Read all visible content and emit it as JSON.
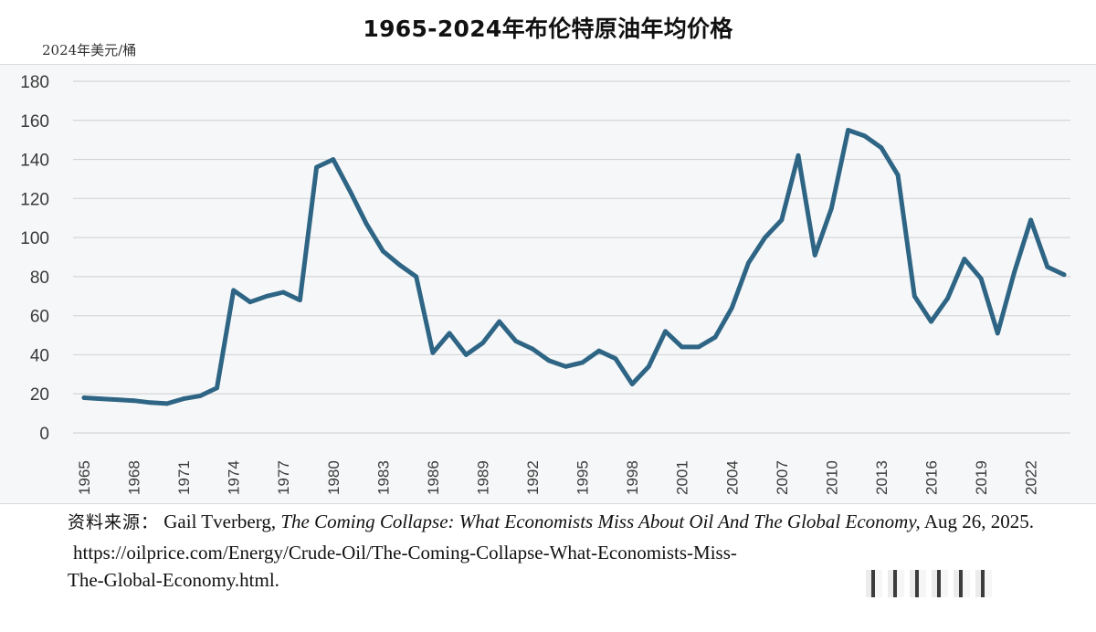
{
  "chart_data": {
    "type": "line",
    "title": "1965-2024年布伦特原油年均价格",
    "ylabel": "2024年美元/桶",
    "xlabel": "",
    "ylim": [
      0,
      180
    ],
    "grid": true,
    "legend": "none",
    "line_color": "#2e6585",
    "y_ticks": [
      0,
      20,
      40,
      60,
      80,
      100,
      120,
      140,
      160,
      180
    ],
    "x_ticks": [
      "1965",
      "1968",
      "1971",
      "1974",
      "1977",
      "1980",
      "1983",
      "1986",
      "1989",
      "1992",
      "1995",
      "1998",
      "2001",
      "2004",
      "2007",
      "2010",
      "2013",
      "2016",
      "2019",
      "2022"
    ],
    "series": [
      {
        "name": "布伦特原油年均价格",
        "x": [
          1965,
          1966,
          1967,
          1968,
          1969,
          1970,
          1971,
          1972,
          1973,
          1974,
          1975,
          1976,
          1977,
          1978,
          1979,
          1980,
          1981,
          1982,
          1983,
          1984,
          1985,
          1986,
          1987,
          1988,
          1989,
          1990,
          1991,
          1992,
          1993,
          1994,
          1995,
          1996,
          1997,
          1998,
          1999,
          2000,
          2001,
          2002,
          2003,
          2004,
          2005,
          2006,
          2007,
          2008,
          2009,
          2010,
          2011,
          2012,
          2013,
          2014,
          2015,
          2016,
          2017,
          2018,
          2019,
          2020,
          2021,
          2022,
          2023,
          2024
        ],
        "values": [
          18,
          17.5,
          17,
          16.5,
          15.5,
          15,
          17.5,
          19,
          23,
          73,
          67,
          70,
          72,
          68,
          136,
          140,
          124,
          107,
          93,
          86,
          80,
          41,
          51,
          40,
          46,
          57,
          47,
          43,
          37,
          34,
          36,
          42,
          38,
          25,
          34,
          52,
          44,
          44,
          49,
          64,
          87,
          100,
          109,
          142,
          91,
          115,
          155,
          152,
          146,
          132,
          70,
          57,
          69,
          89,
          79,
          51,
          82,
          109,
          85,
          81
        ]
      }
    ]
  },
  "source": {
    "label": "资料来源：",
    "author": "Gail Tverberg, ",
    "book_title": "The Coming Collapse: What Economists Miss About Oil And The Global Economy,",
    "date": " Aug 26, 2025.",
    "url_line1": "https://oilprice.com/Energy/Crude-Oil/The-Coming-Collapse-What-Economists-Miss-",
    "url_line2": "The-Global-Economy.html."
  }
}
